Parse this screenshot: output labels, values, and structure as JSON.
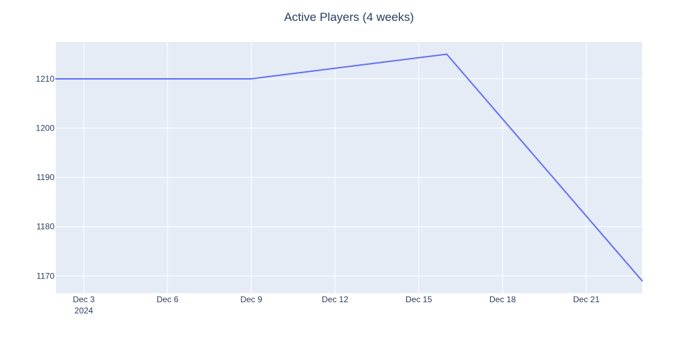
{
  "chart_data": {
    "type": "line",
    "title": "Active Players (4 weeks)",
    "xlabel": "",
    "ylabel": "",
    "x": [
      "2024-12-02",
      "2024-12-09",
      "2024-12-16",
      "2024-12-23"
    ],
    "series": [
      {
        "values": [
          1210,
          1210,
          1215,
          1169
        ],
        "color": "#636efa"
      }
    ],
    "xlim": [
      "2024-12-02",
      "2024-12-23"
    ],
    "ylim": [
      1166.5,
      1217.5
    ],
    "x_ticks": [
      {
        "value": "2024-12-03",
        "label": "Dec 3",
        "sublabel": "2024"
      },
      {
        "value": "2024-12-06",
        "label": "Dec 6"
      },
      {
        "value": "2024-12-09",
        "label": "Dec 9"
      },
      {
        "value": "2024-12-12",
        "label": "Dec 12"
      },
      {
        "value": "2024-12-15",
        "label": "Dec 15"
      },
      {
        "value": "2024-12-18",
        "label": "Dec 18"
      },
      {
        "value": "2024-12-21",
        "label": "Dec 21"
      }
    ],
    "y_ticks": [
      {
        "value": 1170,
        "label": "1170"
      },
      {
        "value": 1180,
        "label": "1180"
      },
      {
        "value": 1190,
        "label": "1190"
      },
      {
        "value": 1200,
        "label": "1200"
      },
      {
        "value": 1210,
        "label": "1210"
      }
    ],
    "grid": true,
    "legend": "none",
    "colors": {
      "plot_background": "#e5ecf6",
      "grid": "#ffffff",
      "text": "#2a3f5f"
    }
  }
}
